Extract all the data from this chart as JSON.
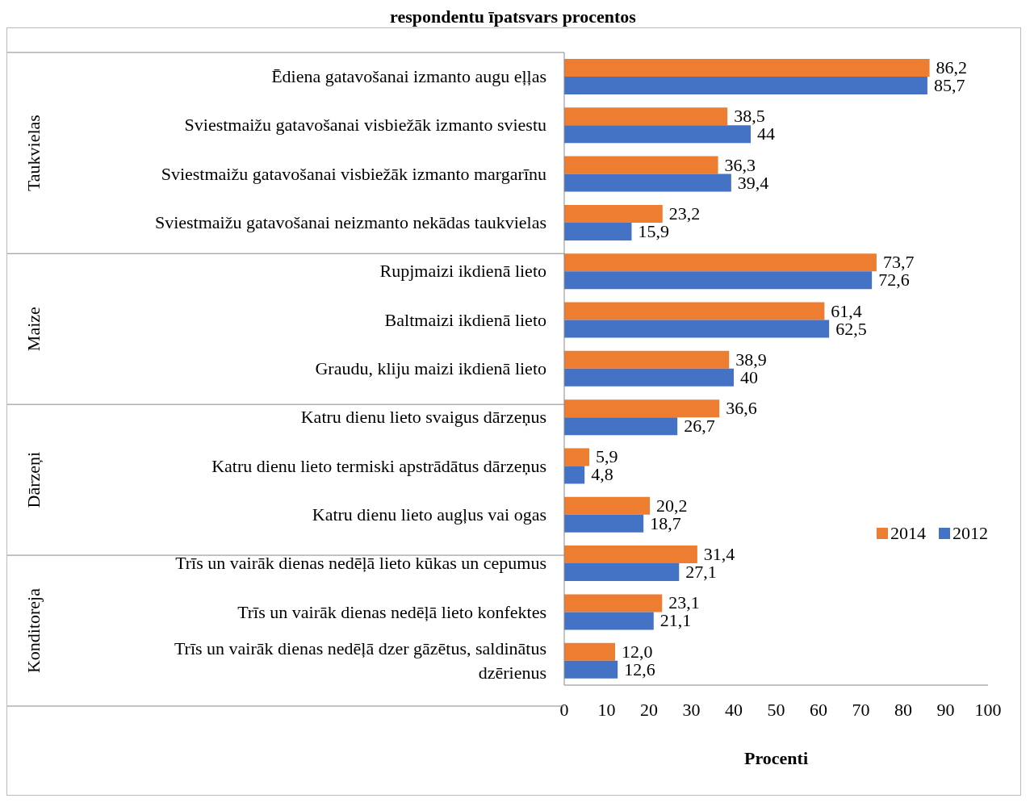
{
  "chart_data": {
    "type": "bar",
    "orientation": "horizontal",
    "title": "respondentu īpatsvars procentos",
    "xlabel": "Procenti",
    "categories": [
      "Ēdiena gatavošanai izmanto augu eļļas",
      "Sviestmaižu gatavošanai visbiežāk izmanto sviestu",
      "Sviestmaižu gatavošanai visbiežāk izmanto margarīnu",
      "Sviestmaižu gatavošanai neizmanto nekādas taukvielas",
      "Rupjmaizi ikdienā lieto",
      "Baltmaizi ikdienā lieto",
      "Graudu, kliju maizi ikdienā lieto",
      "Katru dienu lieto svaigus dārzeņus",
      "Katru dienu lieto termiski apstrādātus dārzeņus",
      "Katru dienu lieto augļus vai ogas",
      "Trīs un vairāk dienas nedēļā lieto kūkas un cepumus",
      "Trīs un vairāk dienas nedēļā lieto konfektes",
      "Trīs un vairāk dienas nedēļā dzer gāzētus, saldinātus dzērienus"
    ],
    "series": [
      {
        "name": "2014",
        "color": "#ed7d31",
        "values": [
          86.2,
          38.5,
          36.3,
          23.2,
          73.7,
          61.4,
          38.9,
          36.6,
          5.9,
          20.2,
          31.4,
          23.1,
          12.0
        ],
        "value_labels": [
          "86,2",
          "38,5",
          "36,3",
          "23,2",
          "73,7",
          "61,4",
          "38,9",
          "36,6",
          "5,9",
          "20,2",
          "31,4",
          "23,1",
          "12,0"
        ]
      },
      {
        "name": "2012",
        "color": "#4472c4",
        "values": [
          85.7,
          44,
          39.4,
          15.9,
          72.6,
          62.5,
          40,
          26.7,
          4.8,
          18.7,
          27.1,
          21.1,
          12.6
        ],
        "value_labels": [
          "85,7",
          "44",
          "39,4",
          "15,9",
          "72,6",
          "62,5",
          "40",
          "26,7",
          "4,8",
          "18,7",
          "27,1",
          "21,1",
          "12,6"
        ]
      }
    ],
    "xlim": [
      0,
      100
    ],
    "xticks": [
      0,
      10,
      20,
      30,
      40,
      50,
      60,
      70,
      80,
      90,
      100
    ],
    "annotations": [
      "Taukvielas",
      "Maize",
      "Dārzeņi",
      "Konditoreja"
    ],
    "legend": "right",
    "grid": false
  }
}
